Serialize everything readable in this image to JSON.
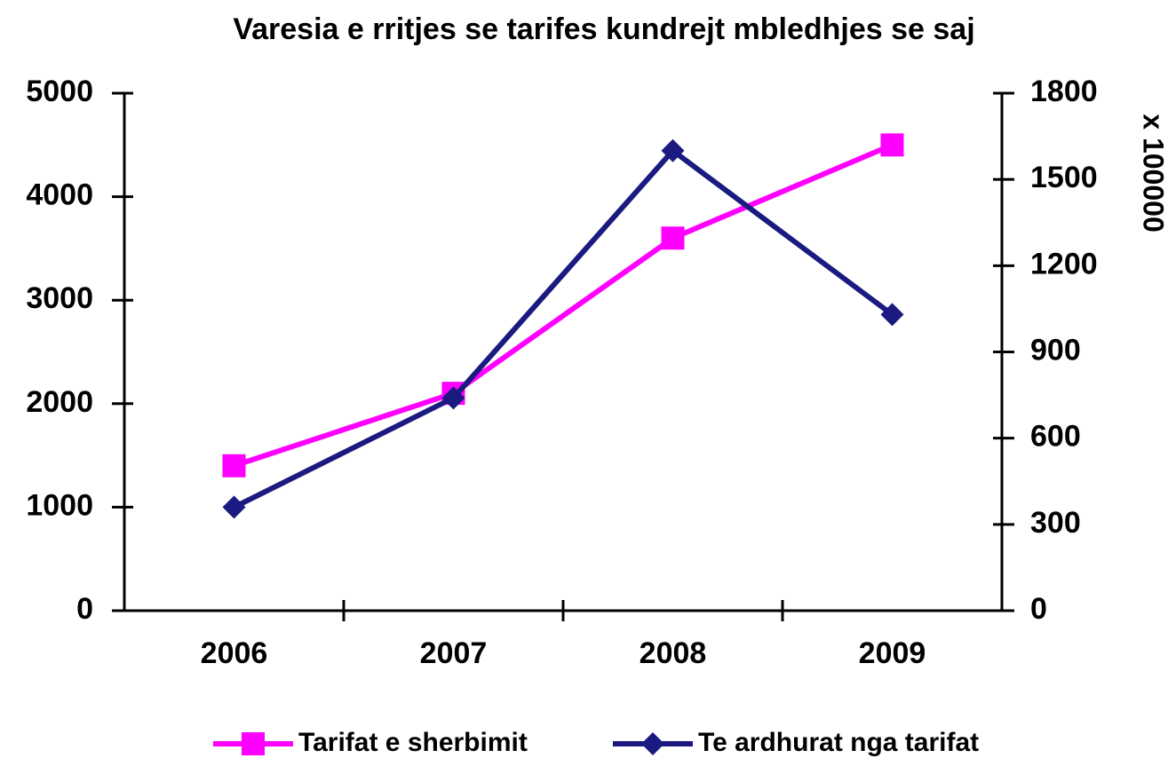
{
  "chart_data": {
    "type": "line",
    "title": "Varesia e rritjes se tarifes kundrejt mbledhjes se saj",
    "categories": [
      "2006",
      "2007",
      "2008",
      "2009"
    ],
    "series": [
      {
        "name": "Tarifat e sherbimit",
        "color": "#ff00ff",
        "marker": "square",
        "values": [
          1400,
          2100,
          3600,
          4500
        ]
      },
      {
        "name": "Te ardhurat nga tarifat",
        "color": "#1a1a80",
        "marker": "diamond",
        "axis": "y2",
        "values": [
          360,
          740,
          1600,
          1030
        ]
      }
    ],
    "ylim": [
      0,
      5000
    ],
    "yticks": [
      0,
      1000,
      2000,
      3000,
      4000,
      5000
    ],
    "y2lim": [
      0,
      1800
    ],
    "y2ticks": [
      0,
      300,
      600,
      900,
      1200,
      1500,
      1800
    ],
    "y2label": "x 100000",
    "legend": "bottom"
  }
}
